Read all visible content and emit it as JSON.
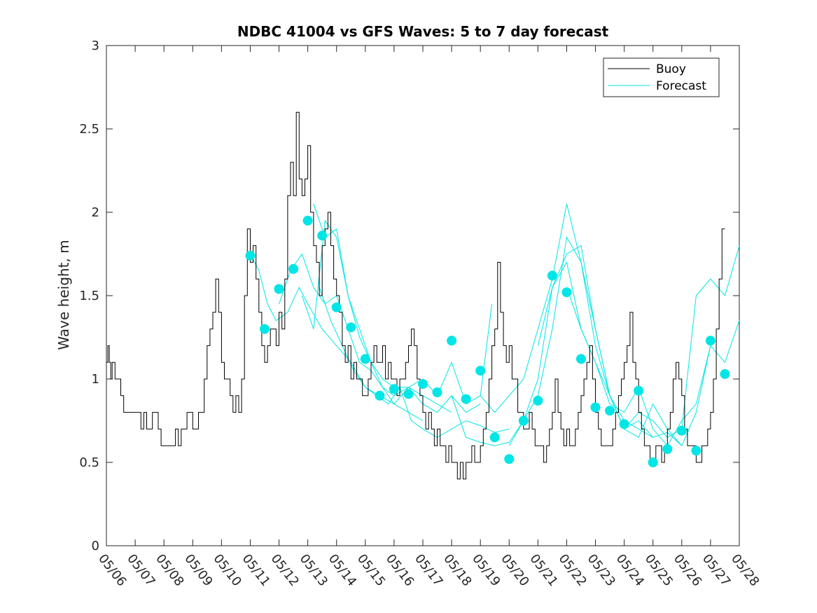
{
  "chart_data": {
    "type": "line",
    "title": "NDBC 41004 vs GFS Waves: 5 to 7 day forecast",
    "xlabel": "",
    "ylabel": "Wave height, m",
    "xlim": [
      0,
      22
    ],
    "ylim": [
      0,
      3
    ],
    "x_ticks": [
      0,
      1,
      2,
      3,
      4,
      5,
      6,
      7,
      8,
      9,
      10,
      11,
      12,
      13,
      14,
      15,
      16,
      17,
      18,
      19,
      20,
      21,
      22
    ],
    "x_tick_labels": [
      "05/06",
      "05/07",
      "05/08",
      "05/09",
      "05/10",
      "05/11",
      "05/12",
      "05/13",
      "05/14",
      "05/15",
      "05/16",
      "05/17",
      "05/18",
      "05/19",
      "05/20",
      "05/21",
      "05/22",
      "05/23",
      "05/24",
      "05/25",
      "05/26",
      "05/27",
      "05/28"
    ],
    "y_ticks": [
      0,
      0.5,
      1,
      1.5,
      2,
      2.5,
      3
    ],
    "y_tick_labels": [
      "0",
      "0.5",
      "1",
      "1.5",
      "2",
      "2.5",
      "3"
    ],
    "x_units_note": "x values are in days after 05/06 00:00",
    "grid": false,
    "legend": {
      "position": "top-right",
      "entries": [
        "Buoy",
        "Forecast"
      ]
    },
    "colors": {
      "buoy": "#000000",
      "forecast": "#00e5e5",
      "axes": "#262626"
    },
    "series": [
      {
        "name": "Buoy",
        "x": [
          0,
          0.05,
          0.1,
          0.15,
          0.2,
          0.3,
          0.4,
          0.5,
          0.6,
          0.8,
          1.0,
          1.2,
          1.3,
          1.4,
          1.5,
          1.6,
          1.8,
          1.9,
          2.0,
          2.2,
          2.4,
          2.5,
          2.6,
          2.8,
          3.0,
          3.2,
          3.4,
          3.5,
          3.6,
          3.7,
          3.8,
          3.9,
          4.0,
          4.1,
          4.2,
          4.3,
          4.4,
          4.5,
          4.6,
          4.7,
          4.8,
          4.9,
          5.0,
          5.1,
          5.2,
          5.3,
          5.4,
          5.5,
          5.6,
          5.7,
          5.8,
          5.9,
          6.0,
          6.1,
          6.2,
          6.3,
          6.4,
          6.5,
          6.6,
          6.7,
          6.8,
          6.9,
          7.0,
          7.1,
          7.2,
          7.3,
          7.4,
          7.5,
          7.6,
          7.7,
          7.8,
          7.9,
          8.0,
          8.1,
          8.2,
          8.3,
          8.4,
          8.5,
          8.6,
          8.7,
          8.8,
          8.9,
          9.0,
          9.1,
          9.2,
          9.3,
          9.4,
          9.5,
          9.6,
          9.7,
          9.8,
          9.9,
          10.0,
          10.1,
          10.2,
          10.3,
          10.4,
          10.5,
          10.6,
          10.7,
          10.8,
          10.9,
          11.0,
          11.1,
          11.2,
          11.3,
          11.4,
          11.5,
          11.6,
          11.7,
          11.8,
          11.9,
          12.0,
          12.1,
          12.2,
          12.3,
          12.4,
          12.5,
          12.6,
          12.7,
          12.8,
          12.9,
          13.0,
          13.1,
          13.2,
          13.3,
          13.4,
          13.5,
          13.6,
          13.7,
          13.8,
          13.9,
          14.0,
          14.1,
          14.2,
          14.3,
          14.4,
          14.5,
          14.6,
          14.7,
          14.8,
          14.9,
          15.0,
          15.1,
          15.2,
          15.3,
          15.4,
          15.5,
          15.6,
          15.7,
          15.8,
          15.9,
          16.0,
          16.1,
          16.2,
          16.3,
          16.4,
          16.5,
          16.6,
          16.7,
          16.8,
          16.9,
          17.0,
          17.1,
          17.2,
          17.3,
          17.4,
          17.5,
          17.6,
          17.7,
          17.8,
          17.9,
          18.0,
          18.1,
          18.2,
          18.3,
          18.4,
          18.5,
          18.6,
          18.7,
          18.8,
          18.9,
          19.0,
          19.1,
          19.2,
          19.3,
          19.4,
          19.5,
          19.6,
          19.7,
          19.8,
          19.9,
          20.0,
          20.1,
          20.2,
          20.3,
          20.4,
          20.5,
          20.6,
          20.7,
          20.8,
          20.9,
          21.0,
          21.1,
          21.2,
          21.3,
          21.4,
          21.5
        ],
        "y": [
          1.1,
          1.2,
          1.1,
          1.0,
          1.1,
          1.0,
          1.0,
          0.9,
          0.8,
          0.8,
          0.8,
          0.7,
          0.8,
          0.7,
          0.7,
          0.8,
          0.7,
          0.6,
          0.6,
          0.6,
          0.7,
          0.6,
          0.7,
          0.8,
          0.7,
          0.8,
          1.0,
          1.2,
          1.3,
          1.4,
          1.6,
          1.4,
          1.1,
          1.0,
          1.0,
          0.9,
          0.8,
          0.9,
          0.8,
          1.0,
          1.5,
          1.9,
          1.7,
          1.8,
          1.6,
          1.4,
          1.2,
          1.1,
          1.2,
          1.3,
          1.3,
          1.2,
          1.4,
          1.3,
          1.6,
          2.1,
          2.3,
          2.1,
          2.6,
          2.2,
          2.1,
          2.2,
          2.4,
          2.0,
          1.8,
          1.7,
          1.5,
          1.8,
          1.9,
          2.0,
          1.8,
          1.6,
          1.5,
          1.4,
          1.2,
          1.1,
          1.2,
          1.0,
          1.1,
          1.0,
          1.0,
          0.9,
          0.9,
          1.0,
          1.1,
          1.2,
          1.1,
          1.1,
          1.2,
          1.0,
          1.1,
          1.0,
          1.0,
          0.9,
          1.0,
          1.0,
          1.1,
          1.2,
          1.3,
          1.2,
          1.0,
          0.9,
          0.8,
          0.7,
          0.8,
          0.7,
          0.6,
          0.7,
          0.6,
          0.6,
          0.5,
          0.6,
          0.5,
          0.5,
          0.4,
          0.5,
          0.4,
          0.5,
          0.5,
          0.6,
          0.5,
          0.5,
          0.6,
          0.7,
          0.8,
          1.0,
          1.2,
          1.3,
          1.7,
          1.4,
          1.2,
          1.1,
          1.2,
          1.0,
          1.0,
          0.8,
          0.8,
          0.7,
          0.7,
          0.8,
          0.7,
          0.6,
          0.6,
          0.6,
          0.5,
          0.6,
          0.7,
          0.8,
          1.0,
          0.8,
          0.7,
          0.6,
          0.7,
          0.6,
          0.6,
          0.7,
          0.8,
          0.9,
          1.0,
          1.1,
          1.2,
          1.0,
          0.8,
          0.7,
          0.6,
          0.6,
          0.6,
          0.6,
          0.7,
          0.8,
          0.9,
          1.0,
          1.1,
          1.2,
          1.4,
          1.1,
          1.0,
          0.8,
          0.7,
          0.6,
          0.6,
          0.5,
          0.5,
          0.6,
          0.6,
          0.5,
          0.6,
          0.7,
          0.8,
          1.0,
          1.1,
          1.0,
          0.9,
          0.7,
          0.6,
          0.6,
          0.6,
          0.5,
          0.5,
          0.6,
          0.6,
          0.7,
          0.8,
          1.0,
          1.3,
          1.6,
          1.9,
          1.9
        ]
      },
      {
        "name": "Forecast",
        "lines": [
          {
            "x": [
              5.0,
              5.3,
              5.6,
              5.9,
              6.3,
              6.7,
              7.0,
              7.5,
              8.0,
              8.5,
              9.0,
              9.5,
              10.0,
              10.5,
              11.0
            ],
            "y": [
              1.75,
              1.65,
              1.45,
              1.35,
              1.4,
              1.55,
              1.45,
              1.3,
              1.2,
              1.1,
              0.95,
              0.9,
              0.85,
              0.8,
              0.75
            ]
          },
          {
            "x": [
              6.0,
              6.4,
              6.8,
              7.2,
              7.6,
              8.0,
              8.4,
              8.8,
              9.2,
              9.6,
              10.0,
              10.5,
              11.0,
              11.5,
              12.0
            ],
            "y": [
              1.45,
              1.65,
              1.75,
              1.55,
              1.45,
              1.5,
              1.3,
              1.1,
              1.05,
              0.95,
              0.85,
              0.95,
              0.9,
              0.85,
              0.8
            ]
          },
          {
            "x": [
              6.8,
              7.2,
              7.6,
              8.0,
              8.4,
              8.8,
              9.2,
              9.6,
              10.0,
              10.5,
              11.0,
              11.5,
              12.0,
              12.5,
              13.0
            ],
            "y": [
              1.5,
              1.3,
              1.95,
              1.85,
              1.5,
              1.25,
              1.1,
              0.95,
              0.9,
              0.95,
              0.85,
              0.8,
              0.9,
              0.8,
              0.85
            ]
          },
          {
            "x": [
              7.2,
              7.6,
              8.0,
              8.4,
              8.8,
              9.2,
              9.6,
              10.0,
              10.5,
              11.0,
              11.5,
              12.0,
              12.5,
              13.0,
              13.4
            ],
            "y": [
              2.05,
              1.85,
              1.9,
              1.5,
              1.3,
              1.1,
              1.0,
              0.95,
              0.95,
              1.0,
              0.9,
              1.1,
              0.85,
              0.9,
              1.45
            ]
          },
          {
            "x": [
              7.4,
              7.8,
              8.2,
              8.6,
              9.0,
              9.4,
              9.8,
              10.2,
              10.6,
              11.0,
              11.5,
              12.0,
              12.5,
              13.0,
              13.5,
              14.0
            ],
            "y": [
              1.55,
              1.35,
              1.2,
              1.05,
              0.95,
              0.9,
              0.85,
              0.95,
              0.75,
              0.7,
              0.65,
              0.7,
              0.75,
              0.72,
              0.68,
              0.7
            ]
          },
          {
            "x": [
              12.0,
              12.5,
              13.0,
              13.5,
              14.0,
              14.5,
              15.0,
              15.5,
              16.0,
              16.5,
              17.0,
              17.5,
              18.0,
              18.5,
              19.0
            ],
            "y": [
              0.9,
              0.65,
              0.62,
              0.6,
              0.62,
              0.75,
              0.9,
              1.3,
              1.85,
              1.7,
              1.2,
              0.9,
              0.7,
              0.75,
              0.65
            ]
          },
          {
            "x": [
              13.0,
              13.5,
              14.0,
              14.5,
              15.0,
              15.5,
              16.0,
              16.5,
              17.0,
              17.5,
              18.0,
              18.5,
              19.0,
              19.5,
              20.0
            ],
            "y": [
              0.9,
              0.8,
              0.9,
              1.0,
              1.3,
              1.6,
              2.05,
              1.7,
              1.3,
              0.9,
              0.75,
              0.7,
              0.65,
              0.68,
              0.6
            ]
          },
          {
            "x": [
              14.0,
              14.5,
              15.0,
              15.5,
              16.0,
              16.5,
              17.0,
              17.5,
              18.0,
              18.5,
              19.0,
              19.5,
              20.0,
              20.5,
              21.0
            ],
            "y": [
              0.6,
              0.75,
              1.0,
              1.55,
              1.75,
              1.8,
              1.3,
              0.9,
              0.7,
              0.65,
              0.85,
              0.7,
              0.6,
              0.8,
              1.2
            ]
          },
          {
            "x": [
              15.0,
              15.5,
              16.0,
              16.5,
              17.0,
              17.5,
              18.0,
              18.5,
              19.0,
              19.5,
              20.0,
              20.5,
              21.0,
              21.5,
              22.0
            ],
            "y": [
              1.2,
              1.55,
              1.7,
              1.3,
              1.1,
              0.9,
              0.7,
              0.8,
              0.75,
              0.65,
              0.7,
              1.5,
              1.6,
              1.5,
              1.8
            ]
          },
          {
            "x": [
              16.0,
              16.5,
              17.0,
              17.5,
              18.0,
              18.5,
              19.0,
              19.5,
              20.0,
              20.5,
              21.0,
              21.5,
              22.0
            ],
            "y": [
              1.55,
              1.3,
              1.1,
              0.85,
              0.8,
              0.95,
              0.7,
              0.6,
              0.75,
              0.85,
              1.2,
              1.1,
              1.35
            ]
          }
        ],
        "markers": {
          "x": [
            5.0,
            5.5,
            6.0,
            6.5,
            7.0,
            7.5,
            8.0,
            8.5,
            9.0,
            9.5,
            10.0,
            10.5,
            11.0,
            11.5,
            12.0,
            12.5,
            13.0,
            13.5,
            14.0,
            14.5,
            15.0,
            15.5,
            16.0,
            16.5,
            17.0,
            17.5,
            18.0,
            18.5,
            19.0,
            19.5,
            20.0,
            20.5,
            21.0,
            21.5
          ],
          "y": [
            1.74,
            1.3,
            1.54,
            1.66,
            1.95,
            1.86,
            1.43,
            1.31,
            1.12,
            0.9,
            0.94,
            0.91,
            0.97,
            0.92,
            1.23,
            0.88,
            1.05,
            0.65,
            0.52,
            0.75,
            0.87,
            1.62,
            1.52,
            1.12,
            0.83,
            0.81,
            0.73,
            0.93,
            0.5,
            0.58,
            0.69,
            0.57,
            1.23,
            1.03
          ]
        }
      }
    ]
  }
}
